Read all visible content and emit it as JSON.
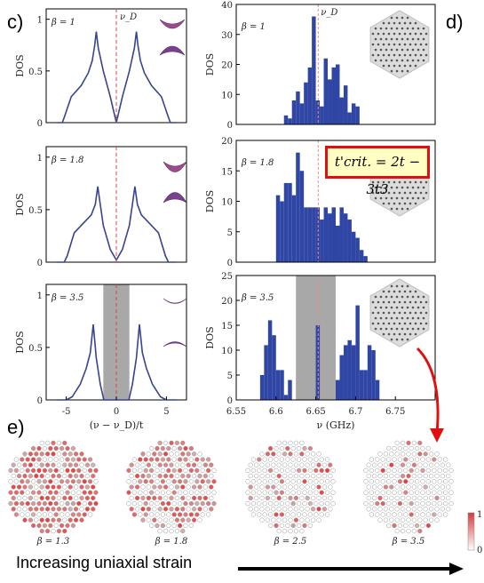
{
  "panel_labels": {
    "c": "c)",
    "d": "d)",
    "e": "e)"
  },
  "formula": "t'crit. = 2t − 3t3",
  "strain_label": "Increasing uniaxial strain",
  "colorbar": {
    "max": "1",
    "min": "0",
    "low_color": "#ffffff",
    "high_color": "#d83a3a"
  },
  "lattice_betas": [
    "β = 1.3",
    "β = 1.8",
    "β = 2.5",
    "β = 3.5"
  ],
  "colors": {
    "bar": "#2f46a5",
    "dos_line": "#37448e",
    "dirac_line": "#e04040",
    "gap_band": "#a8a8a8",
    "arrow": "#e01010"
  },
  "chart_data": [
    {
      "type": "line",
      "panel": "c",
      "title": "",
      "xlabel": "(ν − ν_D)/t",
      "ylabel": "DOS",
      "xlim": [
        -7,
        7
      ],
      "ylim": [
        0,
        1.1
      ],
      "xticks": [
        "-5",
        "0",
        "5"
      ],
      "yticks": [
        "0",
        "0.5",
        "1"
      ],
      "dirac_label": "ν_D",
      "subplots": [
        {
          "beta": "β = 1",
          "x": [
            -6.0,
            -5.4,
            -5.2,
            -4.5,
            -3.5,
            -2.8,
            -2.4,
            -2.15,
            -2.0,
            -1.8,
            -1.3,
            -0.6,
            0,
            0.6,
            1.3,
            1.8,
            2.0,
            2.15,
            2.4,
            2.8,
            3.5,
            4.5,
            5.2,
            5.4,
            6.0
          ],
          "y": [
            0,
            0,
            0.05,
            0.25,
            0.36,
            0.48,
            0.6,
            0.75,
            0.88,
            0.72,
            0.5,
            0.25,
            0,
            0.25,
            0.5,
            0.72,
            0.88,
            0.75,
            0.6,
            0.48,
            0.36,
            0.25,
            0.05,
            0,
            0
          ]
        },
        {
          "beta": "β = 1.8",
          "x": [
            -6.0,
            -5.2,
            -4.9,
            -4.2,
            -3.2,
            -2.5,
            -2.1,
            -1.85,
            -1.6,
            -1.3,
            -0.6,
            0,
            0.6,
            1.3,
            1.6,
            1.85,
            2.1,
            2.5,
            3.2,
            4.2,
            4.9,
            5.2,
            6.0
          ],
          "y": [
            0,
            0,
            0.06,
            0.28,
            0.38,
            0.45,
            0.55,
            0.72,
            0.55,
            0.35,
            0.12,
            0.02,
            0.12,
            0.35,
            0.55,
            0.72,
            0.55,
            0.45,
            0.38,
            0.28,
            0.06,
            0,
            0
          ]
        },
        {
          "beta": "β = 3.5",
          "x": [
            -6.0,
            -5.0,
            -4.4,
            -3.6,
            -3.0,
            -2.6,
            -2.3,
            -2.0,
            -1.6,
            -1.25,
            1.25,
            1.6,
            2.0,
            2.3,
            2.6,
            3.0,
            3.6,
            4.4,
            5.0,
            6.0
          ],
          "y": [
            0,
            0,
            0.03,
            0.15,
            0.3,
            0.45,
            0.72,
            0.4,
            0.15,
            0,
            0,
            0.15,
            0.4,
            0.72,
            0.45,
            0.3,
            0.15,
            0.03,
            0,
            0
          ],
          "gap": [
            -1.3,
            1.3
          ]
        }
      ]
    },
    {
      "type": "bar",
      "panel": "d",
      "title": "",
      "xlabel": "ν (GHz)",
      "ylabel": "DOS",
      "xlim": [
        6.55,
        6.8
      ],
      "xticks": [
        "6.55",
        "6.6",
        "6.65",
        "6.7",
        "6.75"
      ],
      "dirac_label": "ν_D",
      "dirac_x": 6.653,
      "subplots": [
        {
          "beta": "β = 1",
          "ylim": [
            0,
            40
          ],
          "yticks": [
            "0",
            "10",
            "20",
            "30",
            "40"
          ],
          "bin_width": 0.005,
          "x": [
            6.61,
            6.615,
            6.62,
            6.625,
            6.63,
            6.635,
            6.64,
            6.645,
            6.65,
            6.655,
            6.66,
            6.665,
            6.67,
            6.675,
            6.68,
            6.685,
            6.69,
            6.695,
            6.7
          ],
          "values": [
            3,
            2,
            8,
            11,
            7,
            14,
            19,
            36,
            8,
            6,
            22,
            15,
            19,
            20,
            9,
            13,
            4,
            7,
            6
          ]
        },
        {
          "beta": "β = 1.8",
          "ylim": [
            0,
            20
          ],
          "yticks": [
            "0",
            "5",
            "10",
            "15",
            "20"
          ],
          "bin_width": 0.005,
          "x": [
            6.6,
            6.605,
            6.61,
            6.615,
            6.62,
            6.625,
            6.63,
            6.635,
            6.64,
            6.645,
            6.65,
            6.655,
            6.66,
            6.665,
            6.67,
            6.675,
            6.68,
            6.685,
            6.69,
            6.695,
            6.7,
            6.705,
            6.71
          ],
          "values": [
            11,
            10,
            13,
            13,
            11,
            18,
            15,
            9,
            9,
            9,
            9,
            7,
            9,
            8,
            9,
            6,
            9,
            8,
            7,
            5,
            4,
            2,
            1
          ]
        },
        {
          "beta": "β = 3.5",
          "ylim": [
            0,
            25
          ],
          "yticks": [
            "0",
            "5",
            "10",
            "15",
            "20",
            "25"
          ],
          "bin_width": 0.005,
          "gap": [
            6.625,
            6.675
          ],
          "x": [
            6.58,
            6.585,
            6.59,
            6.595,
            6.6,
            6.605,
            6.61,
            6.615,
            6.65,
            6.675,
            6.68,
            6.685,
            6.69,
            6.695,
            6.7,
            6.705,
            6.71,
            6.715,
            6.72,
            6.725
          ],
          "values": [
            5,
            11,
            16,
            13,
            6,
            6,
            1,
            4,
            15,
            4,
            9,
            11,
            12,
            11,
            19,
            6,
            6,
            11,
            10,
            4
          ]
        }
      ]
    }
  ]
}
